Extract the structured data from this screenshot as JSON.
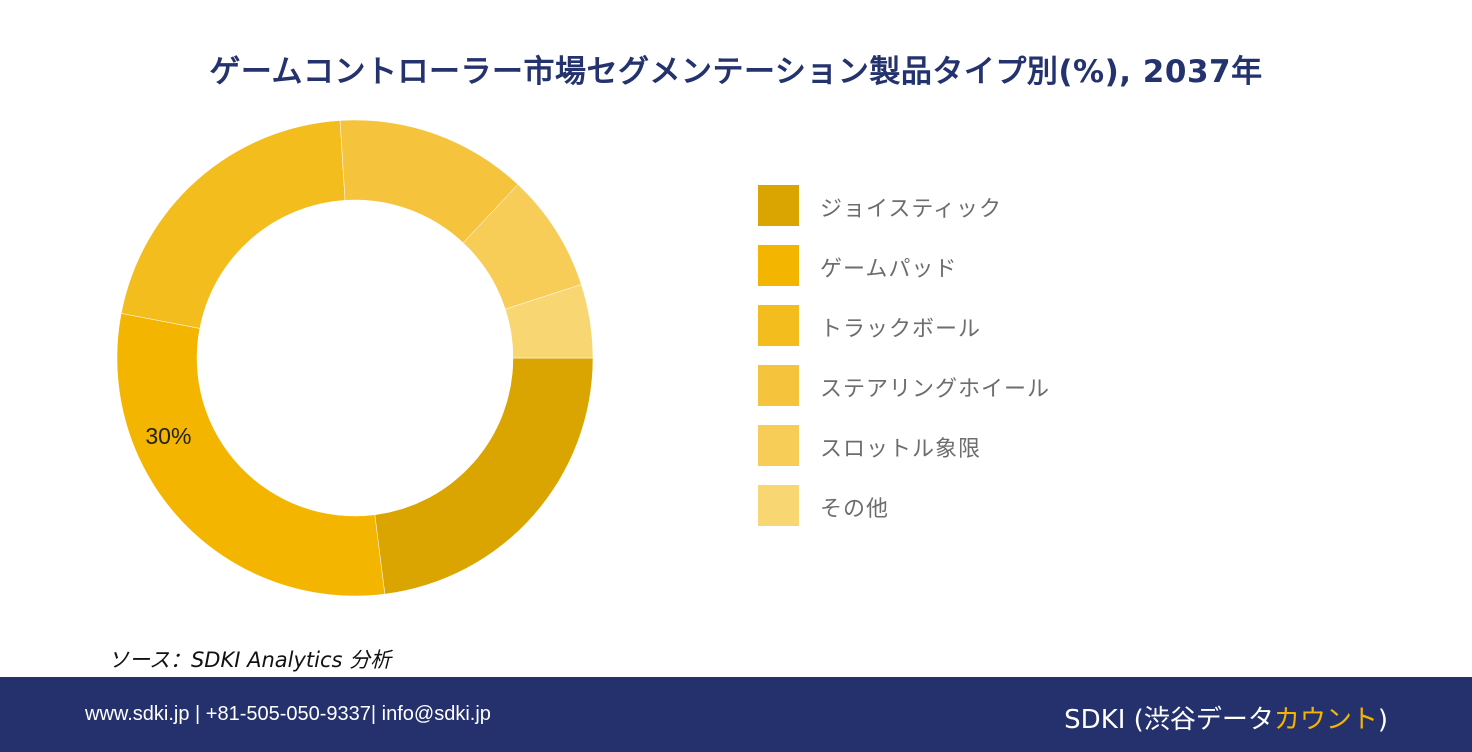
{
  "title": "ゲームコントローラー市場セグメンテーション製品タイプ別(%), 2037年",
  "chart_data": {
    "type": "pie",
    "title": "ゲームコントローラー市場セグメンテーション製品タイプ別(%), 2037年",
    "categories": [
      "ジョイスティック",
      "ゲームパッド",
      "トラックボール",
      "ステアリングホイール",
      "スロットル象限",
      "その他"
    ],
    "values": [
      23,
      30,
      21,
      13,
      8,
      5
    ],
    "colors": [
      "#dba500",
      "#f3b500",
      "#f4bd1e",
      "#f6c43c",
      "#f7cd58",
      "#f8d672"
    ],
    "data_labels": [
      "",
      "30%",
      "",
      "",
      "",
      ""
    ],
    "legend_position": "right",
    "donut": true
  },
  "source": "ソース：SDKI Analytics 分析",
  "footer": {
    "contact": "www.sdki.jp | +81-505-050-9337| info@sdki.jp",
    "brand_prefix": "SDKI (渋谷データ",
    "brand_accent": "カウント",
    "brand_suffix": ")"
  }
}
